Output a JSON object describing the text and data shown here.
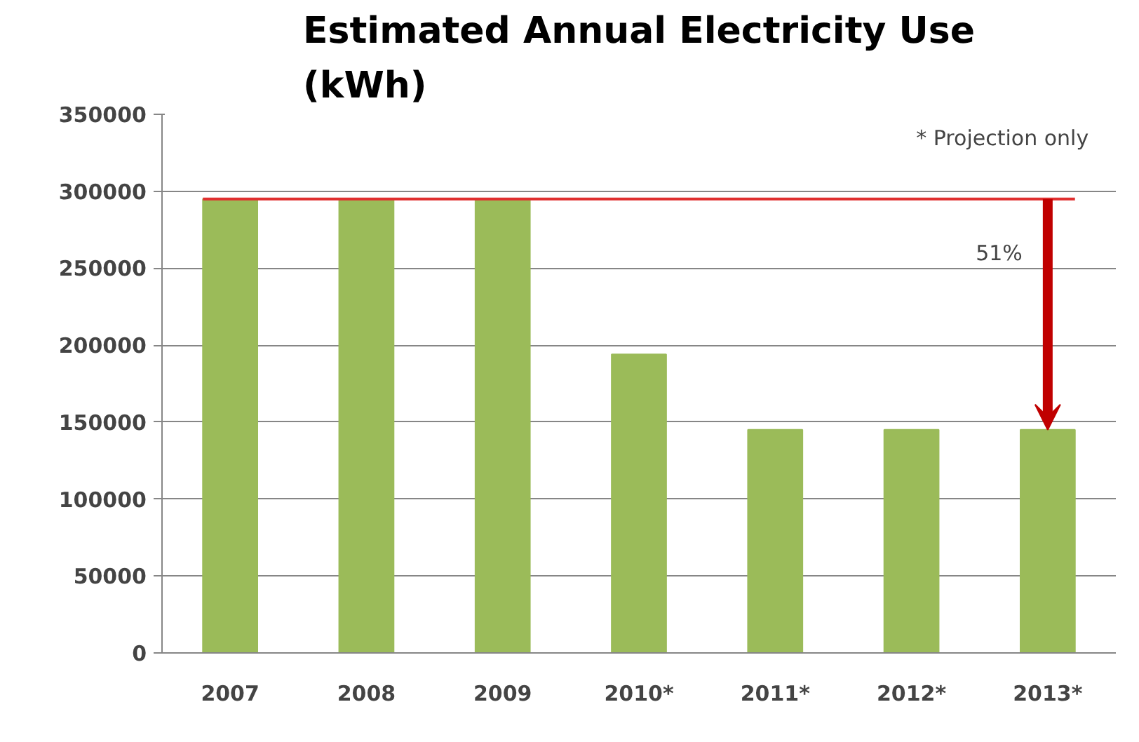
{
  "chart_data": {
    "type": "bar",
    "title": "Estimated Annual Electricity Use\n(kWh)",
    "categories": [
      "2007",
      "2008",
      "2009",
      "2010*",
      "2011*",
      "2012*",
      "2013*"
    ],
    "values": [
      295000,
      295000,
      295000,
      194000,
      145000,
      145000,
      145000
    ],
    "color": "#9bbb59",
    "ylim": [
      0,
      350000
    ],
    "yticks": [
      0,
      50000,
      100000,
      150000,
      200000,
      250000,
      300000,
      350000
    ],
    "grid": "y",
    "ref_lines": [
      {
        "axis": "y",
        "value": 295000,
        "label": null,
        "color": "#e03030"
      }
    ],
    "annotations": [
      "* Projection only",
      "51%"
    ]
  }
}
